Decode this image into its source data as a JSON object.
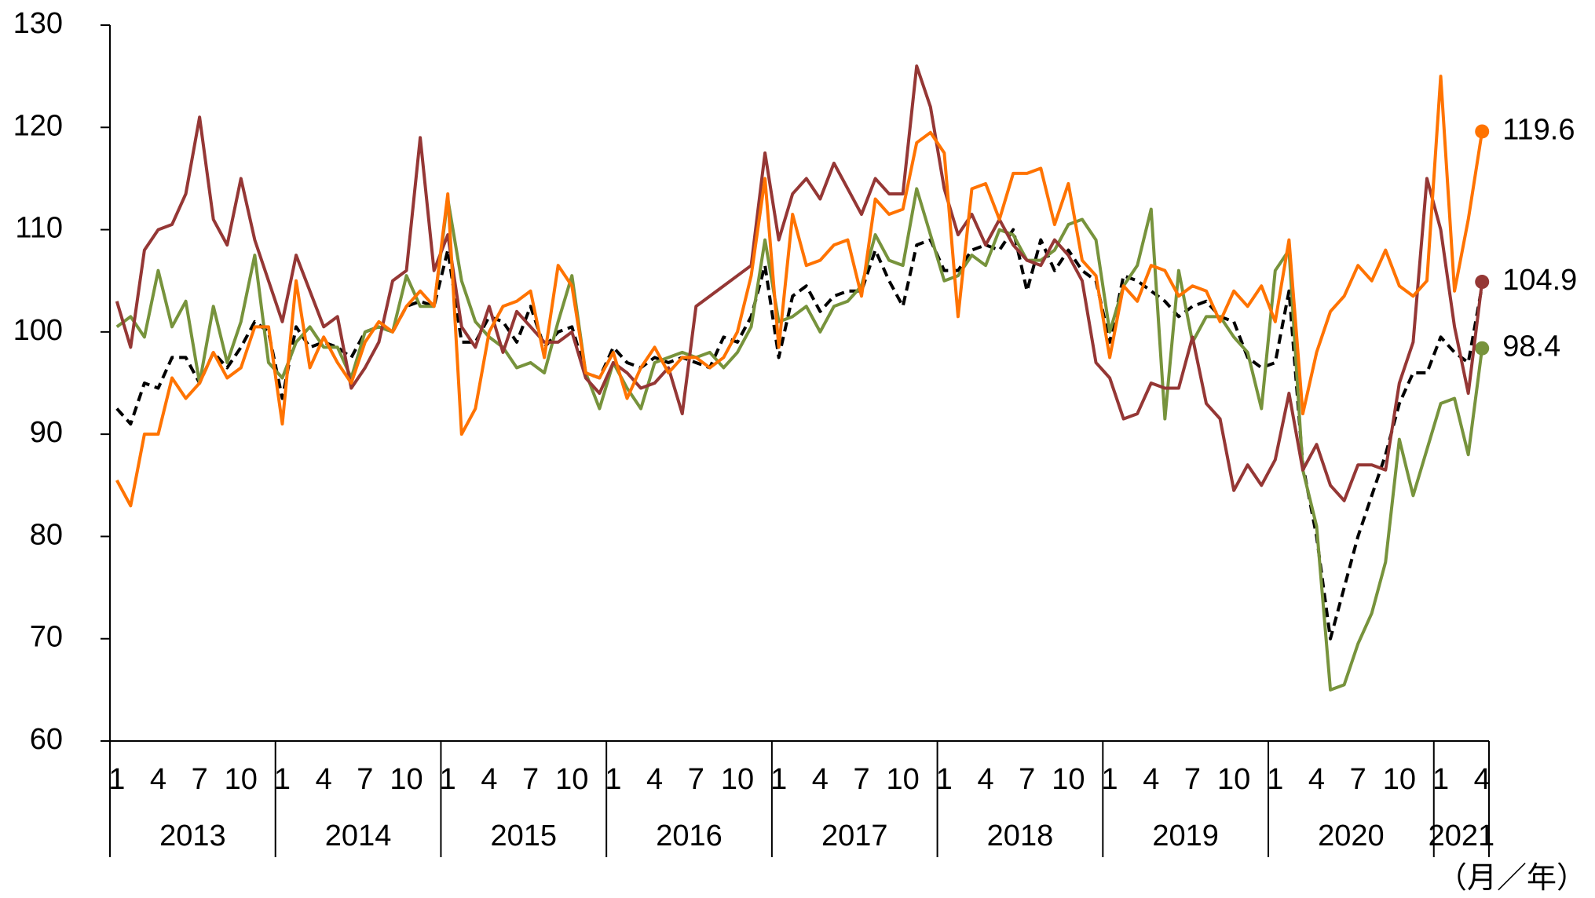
{
  "chart_data": {
    "type": "line",
    "categories": [
      "1",
      null,
      null,
      "4",
      null,
      null,
      "7",
      null,
      null,
      "10",
      null,
      null,
      "1",
      null,
      null,
      "4",
      null,
      null,
      "7",
      null,
      null,
      "10",
      null,
      null,
      "1",
      null,
      null,
      "4",
      null,
      null,
      "7",
      null,
      null,
      "10",
      null,
      null,
      "1",
      null,
      null,
      "4",
      null,
      null,
      "7",
      null,
      null,
      "10",
      null,
      null,
      "1",
      null,
      null,
      "4",
      null,
      null,
      "7",
      null,
      null,
      "10",
      null,
      null,
      "1",
      null,
      null,
      "4",
      null,
      null,
      "7",
      null,
      null,
      "10",
      null,
      null,
      "1",
      null,
      null,
      "4",
      null,
      null,
      "7",
      null,
      null,
      "10",
      null,
      null,
      "1",
      null,
      null,
      "4",
      null,
      null,
      "7",
      null,
      null,
      "10",
      null,
      null,
      "1",
      null,
      null,
      "4"
    ],
    "years": [
      "2013",
      "2014",
      "2015",
      "2016",
      "2017",
      "2018",
      "2019",
      "2020",
      "2021"
    ],
    "x_label": "（月／年）",
    "ylim": [
      60,
      130
    ],
    "yticks": [
      60,
      70,
      80,
      90,
      100,
      110,
      120,
      130
    ],
    "series": [
      {
        "color": "#000000",
        "dashed": true,
        "values": [
          92.5,
          91,
          95,
          94.5,
          97.5,
          97.5,
          95,
          98,
          96.5,
          98.5,
          101,
          100,
          93.5,
          100.5,
          98.5,
          99,
          98.5,
          97.5,
          100,
          100.5,
          100,
          102.5,
          103,
          102.5,
          108,
          99,
          99,
          101.5,
          101,
          99,
          102.5,
          98.5,
          100,
          100.5,
          96,
          95.5,
          98.5,
          97,
          96.5,
          97.5,
          97,
          97.5,
          97,
          96.5,
          99.5,
          99,
          101.5,
          106.5,
          97.5,
          103.5,
          104.5,
          102,
          103.5,
          104,
          104,
          108,
          105,
          102.5,
          108.5,
          109,
          106,
          106,
          108,
          108.5,
          108,
          110,
          104,
          109,
          106,
          108,
          106,
          105,
          99,
          105.5,
          105,
          104,
          103,
          101.5,
          102.5,
          103,
          101.5,
          101,
          97.5,
          96.5,
          97,
          104,
          87,
          80,
          70,
          75,
          80,
          84,
          88,
          93,
          96,
          96,
          99.5,
          98,
          97,
          104.5
        ]
      },
      {
        "color": "#77933c",
        "end_label": "98.4",
        "values": [
          100.5,
          101.5,
          99.5,
          106,
          100.5,
          103,
          95,
          102.5,
          97,
          101,
          107.5,
          97,
          95.5,
          99,
          100.5,
          98.5,
          98.5,
          95.5,
          100,
          100.5,
          100,
          105.5,
          102.5,
          102.5,
          113,
          105,
          101,
          99.5,
          98.5,
          96.5,
          97,
          96,
          101,
          105.5,
          96,
          92.5,
          97,
          94.5,
          92.5,
          97,
          97.5,
          98,
          97.5,
          98,
          96.5,
          98,
          100.5,
          109,
          101,
          101.5,
          102.5,
          100,
          102.5,
          103,
          104.5,
          109.5,
          107,
          106.5,
          114,
          109.5,
          105,
          105.5,
          107.5,
          106.5,
          110,
          109.5,
          107,
          107,
          108,
          110.5,
          111,
          109,
          100,
          104.5,
          106.5,
          112,
          91.5,
          106,
          99,
          101.5,
          101.5,
          99.5,
          98,
          92.5,
          106,
          108,
          86.5,
          81,
          65,
          65.5,
          69.5,
          72.5,
          77.5,
          89.5,
          84,
          88.5,
          93,
          93.5,
          88,
          98.4
        ]
      },
      {
        "color": "#953735",
        "end_label": "104.9",
        "values": [
          103,
          98.5,
          108,
          110,
          110.5,
          113.5,
          121,
          111,
          108.5,
          115,
          109,
          105,
          101,
          107.5,
          104,
          100.5,
          101.5,
          94.5,
          96.5,
          99,
          105,
          106,
          119,
          106,
          109.5,
          100.5,
          98.5,
          102.5,
          98,
          102,
          100.5,
          99,
          99,
          100,
          95.5,
          94,
          97,
          96,
          94.5,
          95,
          96.5,
          92,
          102.5,
          103.5,
          104.5,
          105.5,
          106.5,
          117.5,
          109,
          113.5,
          115,
          113,
          116.5,
          114,
          111.5,
          115,
          113.5,
          113.5,
          126,
          122,
          114,
          109.5,
          111.5,
          108.5,
          111,
          108.5,
          107,
          106.5,
          109,
          107.5,
          105,
          97,
          95.5,
          91.5,
          92,
          95,
          94.5,
          94.5,
          99.5,
          93,
          91.5,
          84.5,
          87,
          85,
          87.5,
          94,
          86.5,
          89,
          85,
          83.5,
          87,
          87,
          86.5,
          95,
          99,
          115,
          110,
          100.5,
          94,
          104.9
        ]
      },
      {
        "color": "#ff7300",
        "end_label": "119.6",
        "values": [
          85.5,
          83,
          90,
          90,
          95.5,
          93.5,
          95,
          98,
          95.5,
          96.5,
          100.5,
          100.5,
          91,
          105,
          96.5,
          99.5,
          97,
          95,
          99,
          101,
          100,
          102.5,
          104,
          102.5,
          113.5,
          90,
          92.5,
          100,
          102.5,
          103,
          104,
          97.5,
          106.5,
          104.5,
          96,
          95.5,
          98,
          93.5,
          96.5,
          98.5,
          96,
          97.5,
          97.5,
          96.5,
          97.5,
          100,
          105.5,
          115,
          98.5,
          111.5,
          106.5,
          107,
          108.5,
          109,
          103.5,
          113,
          111.5,
          112,
          118.5,
          119.5,
          117.5,
          101.5,
          114,
          114.5,
          111,
          115.5,
          115.5,
          116,
          110.5,
          114.5,
          107,
          105.5,
          97.5,
          104.5,
          103,
          106.5,
          106,
          103.5,
          104.5,
          104,
          101,
          104,
          102.5,
          104.5,
          101,
          109,
          92,
          98,
          102,
          103.5,
          106.5,
          105,
          108,
          104.5,
          103.5,
          105,
          125,
          104,
          111,
          119.6
        ]
      }
    ]
  }
}
